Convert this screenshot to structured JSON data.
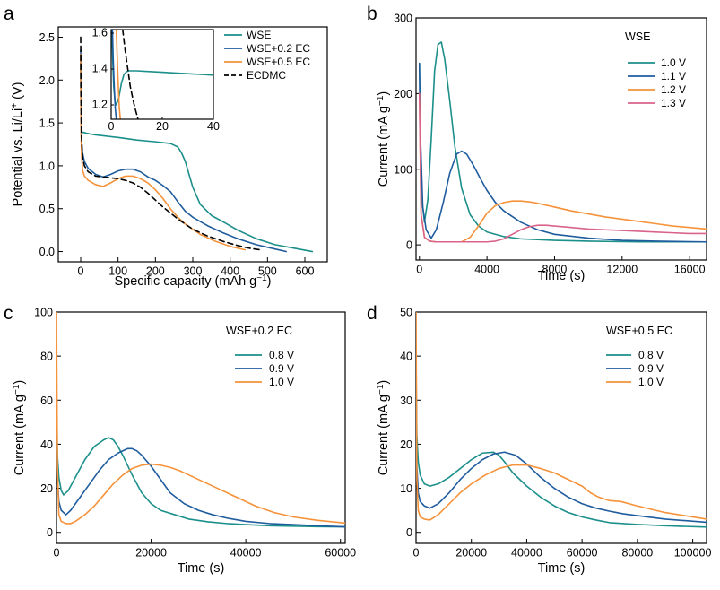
{
  "figure": {
    "colors": {
      "teal": "#1b8f8a",
      "blue": "#1f5c9e",
      "orange": "#f5923a",
      "pink": "#d9638a",
      "black": "#000000"
    }
  },
  "chart_data": [
    {
      "panel": "a",
      "type": "line",
      "xlabel": "Specific capacity (mAh g⁻¹)",
      "ylabel": "Potential vs. Li/Li⁺ (V)",
      "xlim": [
        -60,
        660
      ],
      "ylim": [
        -0.12,
        2.62
      ],
      "xticks": [
        0,
        100,
        200,
        300,
        400,
        500,
        600
      ],
      "yticks": [
        0.0,
        0.5,
        1.0,
        1.5,
        2.0,
        2.5
      ],
      "ytick_labels": [
        "0.0",
        "0.5",
        "1.0",
        "1.5",
        "2.0",
        "2.5"
      ],
      "legend": [
        "WSE",
        "WSE+0.2 EC",
        "WSE+0.5 EC",
        "ECDMC"
      ],
      "series": [
        {
          "name": "WSE",
          "color": "teal",
          "style": "solid",
          "x": [
            0,
            0.5,
            1,
            2,
            3,
            5,
            8,
            15,
            40,
            100,
            150,
            200,
            240,
            260,
            270,
            280,
            290,
            300,
            320,
            350,
            380,
            420,
            470,
            520,
            570,
            620
          ],
          "y": [
            2.3,
            1.9,
            1.6,
            1.45,
            1.38,
            1.39,
            1.39,
            1.38,
            1.36,
            1.33,
            1.3,
            1.28,
            1.26,
            1.22,
            1.15,
            1.05,
            0.9,
            0.75,
            0.55,
            0.42,
            0.35,
            0.25,
            0.15,
            0.08,
            0.04,
            0.0
          ]
        },
        {
          "name": "WSE+0.2 EC",
          "color": "blue",
          "style": "solid",
          "x": [
            0,
            0.5,
            1,
            2,
            5,
            10,
            20,
            40,
            60,
            80,
            100,
            120,
            140,
            160,
            180,
            200,
            220,
            240,
            260,
            280,
            300,
            340,
            380,
            420,
            470,
            520,
            550
          ],
          "y": [
            2.35,
            1.85,
            1.55,
            1.3,
            1.15,
            1.05,
            0.97,
            0.9,
            0.87,
            0.9,
            0.94,
            0.96,
            0.96,
            0.93,
            0.87,
            0.83,
            0.77,
            0.7,
            0.58,
            0.47,
            0.4,
            0.3,
            0.22,
            0.15,
            0.08,
            0.03,
            0.0
          ]
        },
        {
          "name": "WSE+0.5 EC",
          "color": "orange",
          "style": "solid",
          "x": [
            0,
            0.5,
            1,
            2,
            5,
            10,
            20,
            40,
            60,
            80,
            100,
            120,
            140,
            160,
            180,
            200,
            220,
            240,
            260,
            280,
            320,
            360,
            400,
            440
          ],
          "y": [
            2.3,
            1.8,
            1.45,
            1.15,
            0.95,
            0.88,
            0.83,
            0.78,
            0.76,
            0.8,
            0.85,
            0.88,
            0.88,
            0.85,
            0.8,
            0.72,
            0.62,
            0.5,
            0.4,
            0.32,
            0.2,
            0.12,
            0.06,
            0.02
          ]
        },
        {
          "name": "ECDMC",
          "color": "black",
          "style": "dash",
          "x": [
            0,
            0.5,
            1,
            2,
            5,
            10,
            20,
            40,
            60,
            80,
            100,
            120,
            140,
            160,
            180,
            200,
            220,
            240,
            260,
            280,
            300,
            340,
            380,
            420,
            450,
            480
          ],
          "y": [
            2.5,
            2.1,
            1.7,
            1.35,
            1.1,
            1.0,
            0.93,
            0.88,
            0.87,
            0.86,
            0.85,
            0.83,
            0.8,
            0.75,
            0.68,
            0.6,
            0.52,
            0.45,
            0.38,
            0.32,
            0.26,
            0.18,
            0.12,
            0.07,
            0.04,
            0.02
          ]
        }
      ],
      "inset": {
        "xlim": [
          0,
          40
        ],
        "ylim": [
          1.12,
          1.62
        ],
        "xticks": [
          0,
          20,
          40
        ],
        "yticks": [
          1.2,
          1.4,
          1.6
        ],
        "ytick_labels": [
          "1.2",
          "1.4",
          "1.6"
        ],
        "series": [
          {
            "name": "WSE",
            "color": "teal",
            "style": "solid",
            "x": [
              0.3,
              0.6,
              1.0,
              1.5,
              2.0,
              3.0,
              4.0,
              5.0,
              6.0,
              7.0,
              10,
              15,
              20,
              25,
              30,
              35,
              40
            ],
            "y": [
              1.62,
              1.45,
              1.3,
              1.22,
              1.2,
              1.24,
              1.32,
              1.37,
              1.385,
              1.39,
              1.39,
              1.386,
              1.382,
              1.378,
              1.374,
              1.37,
              1.366
            ]
          },
          {
            "name": "WSE+0.2 EC",
            "color": "blue",
            "style": "solid",
            "x": [
              0.5,
              0.8,
              1.2,
              1.6,
              2.0
            ],
            "y": [
              1.62,
              1.45,
              1.3,
              1.18,
              1.12
            ]
          },
          {
            "name": "WSE+0.5 EC",
            "color": "orange",
            "style": "solid",
            "x": [
              2.0,
              2.4,
              2.8,
              3.2,
              3.6
            ],
            "y": [
              1.62,
              1.45,
              1.3,
              1.18,
              1.12
            ]
          },
          {
            "name": "ECDMC",
            "color": "black",
            "style": "dash",
            "x": [
              4.5,
              5.5,
              6.5,
              7.5,
              9.0,
              10.5
            ],
            "y": [
              1.62,
              1.5,
              1.4,
              1.3,
              1.2,
              1.12
            ]
          }
        ]
      }
    },
    {
      "panel": "b",
      "type": "line",
      "title": "WSE",
      "xlabel": "Time (s)",
      "ylabel": "Current (mA g⁻¹)",
      "xlim": [
        -200,
        17000
      ],
      "ylim": [
        -20,
        300
      ],
      "xticks": [
        0,
        4000,
        8000,
        12000,
        16000
      ],
      "yticks": [
        0,
        100,
        200,
        300
      ],
      "legend": [
        "1.0 V",
        "1.1 V",
        "1.2 V",
        "1.3 V"
      ],
      "series": [
        {
          "name": "1.0 V",
          "color": "teal",
          "x": [
            0,
            50,
            150,
            300,
            500,
            700,
            900,
            1100,
            1300,
            1500,
            1800,
            2100,
            2500,
            3000,
            3500,
            4000,
            5000,
            6000,
            8000,
            10000,
            13000,
            17000
          ],
          "y": [
            240,
            150,
            60,
            30,
            60,
            140,
            230,
            265,
            268,
            245,
            190,
            130,
            75,
            40,
            25,
            17,
            11,
            8,
            6,
            5,
            4,
            4
          ]
        },
        {
          "name": "1.1 V",
          "color": "blue",
          "x": [
            0,
            50,
            200,
            400,
            700,
            1000,
            1400,
            1800,
            2200,
            2500,
            2800,
            3200,
            3600,
            4000,
            4500,
            5000,
            6000,
            7000,
            8000,
            10000,
            12000,
            14000,
            17000
          ],
          "y": [
            240,
            150,
            50,
            20,
            9,
            20,
            55,
            95,
            120,
            124,
            120,
            105,
            88,
            72,
            56,
            45,
            30,
            20,
            14,
            9,
            6,
            5,
            4
          ]
        },
        {
          "name": "1.2 V",
          "color": "orange",
          "x": [
            0,
            100,
            300,
            600,
            1000,
            1500,
            2000,
            2500,
            3000,
            3500,
            4000,
            4500,
            5000,
            5500,
            6000,
            6500,
            7000,
            8000,
            9000,
            10000,
            11000,
            12000,
            13000,
            14000,
            15000,
            16000,
            17000
          ],
          "y": [
            200,
            40,
            10,
            5,
            4,
            4,
            4,
            4,
            10,
            25,
            42,
            52,
            56,
            58,
            58,
            57,
            55,
            50,
            45,
            41,
            37,
            34,
            31,
            28,
            25,
            23,
            21
          ]
        },
        {
          "name": "1.3 V",
          "color": "pink",
          "x": [
            0,
            100,
            300,
            600,
            1000,
            2000,
            3000,
            4000,
            4500,
            5000,
            5500,
            6000,
            6500,
            7000,
            7500,
            8000,
            9000,
            10000,
            11000,
            12000,
            13000,
            14000,
            15000,
            16000,
            17000
          ],
          "y": [
            200,
            40,
            10,
            5,
            4,
            4,
            4,
            4,
            5,
            8,
            14,
            20,
            24,
            26,
            26,
            25,
            23,
            21,
            20,
            19,
            18,
            17,
            16,
            15,
            15
          ]
        }
      ]
    },
    {
      "panel": "c",
      "type": "line",
      "title": "WSE+0.2 EC",
      "xlabel": "Time (s)",
      "ylabel": "Current (mA g⁻¹)",
      "xlim": [
        0,
        61000
      ],
      "ylim": [
        -5,
        100
      ],
      "xticks": [
        0,
        20000,
        40000,
        60000
      ],
      "yticks": [
        0,
        20,
        40,
        60,
        80,
        100
      ],
      "legend": [
        "0.8 V",
        "0.9 V",
        "1.0 V"
      ],
      "series": [
        {
          "name": "0.8 V",
          "color": "teal",
          "x": [
            0,
            200,
            500,
            1000,
            1500,
            2500,
            4000,
            6000,
            8000,
            10000,
            11000,
            12000,
            13000,
            14000,
            16000,
            18000,
            20000,
            22000,
            25000,
            28000,
            32000,
            36000,
            40000,
            45000,
            50000,
            55000,
            61000
          ],
          "y": [
            60,
            35,
            25,
            19,
            17,
            19,
            25,
            33,
            39,
            42,
            43,
            42,
            39,
            35,
            26,
            18,
            13,
            10,
            8,
            6,
            4.8,
            4,
            3.5,
            3,
            2.8,
            2.6,
            2.5
          ]
        },
        {
          "name": "0.9 V",
          "color": "blue",
          "x": [
            0,
            200,
            500,
            1000,
            2000,
            3000,
            5000,
            7000,
            9000,
            11000,
            13000,
            15000,
            16000,
            17000,
            18000,
            20000,
            22000,
            24000,
            27000,
            30000,
            33000,
            36000,
            40000,
            45000,
            50000,
            55000,
            61000
          ],
          "y": [
            55,
            25,
            14,
            10,
            8,
            10,
            16,
            22,
            28,
            33,
            36,
            38,
            38,
            37,
            35,
            30,
            24,
            18,
            13,
            10,
            8,
            6.5,
            5,
            4,
            3.5,
            3,
            2.5
          ]
        },
        {
          "name": "1.0 V",
          "color": "orange",
          "x": [
            0,
            200,
            500,
            1000,
            2000,
            3000,
            4000,
            6000,
            8000,
            10000,
            12000,
            14000,
            16000,
            18000,
            20000,
            22000,
            24000,
            26000,
            28000,
            31000,
            34000,
            38000,
            42000,
            46000,
            50000,
            55000,
            61000
          ],
          "y": [
            100,
            30,
            8,
            5,
            4,
            4,
            5,
            8,
            12,
            17,
            22,
            26,
            29,
            30.5,
            31,
            30.5,
            29.5,
            28,
            26,
            23,
            20,
            16,
            12,
            9,
            7,
            5.5,
            4.2
          ]
        }
      ]
    },
    {
      "panel": "d",
      "type": "line",
      "title": "WSE+0.5 EC",
      "xlabel": "Time (s)",
      "ylabel": "Current (mA g⁻¹)",
      "xlim": [
        0,
        105000
      ],
      "ylim": [
        -2.5,
        50
      ],
      "xticks": [
        0,
        20000,
        40000,
        60000,
        80000,
        100000
      ],
      "yticks": [
        0,
        10,
        20,
        30,
        40,
        50
      ],
      "legend": [
        "0.8 V",
        "0.9 V",
        "1.0 V"
      ],
      "series": [
        {
          "name": "0.8 V",
          "color": "teal",
          "x": [
            0,
            300,
            800,
            1500,
            3000,
            5000,
            8000,
            12000,
            16000,
            20000,
            24000,
            28000,
            30000,
            32000,
            35000,
            40000,
            45000,
            50000,
            55000,
            60000,
            65000,
            70000,
            80000,
            90000,
            105000
          ],
          "y": [
            35,
            22,
            16,
            13,
            11,
            10.5,
            11,
            12.5,
            14.5,
            16.5,
            18,
            18.2,
            17.5,
            16,
            13.5,
            10.5,
            8,
            6,
            4.5,
            3.5,
            2.8,
            2.2,
            1.8,
            1.5,
            1.2
          ]
        },
        {
          "name": "0.9 V",
          "color": "blue",
          "x": [
            0,
            300,
            800,
            1500,
            3000,
            5000,
            8000,
            12000,
            16000,
            20000,
            24000,
            28000,
            32000,
            36000,
            40000,
            45000,
            50000,
            55000,
            60000,
            65000,
            70000,
            75000,
            80000,
            90000,
            105000
          ],
          "y": [
            40,
            15,
            9,
            7,
            6,
            5.5,
            6.5,
            9,
            12,
            14.5,
            16.5,
            17.8,
            18.2,
            17.5,
            15.5,
            12.5,
            10,
            8,
            6.5,
            5.5,
            4.8,
            4.2,
            3.8,
            3,
            2.3
          ]
        },
        {
          "name": "1.0 V",
          "color": "orange",
          "x": [
            0,
            300,
            800,
            1500,
            3000,
            5000,
            8000,
            12000,
            16000,
            20000,
            25000,
            30000,
            35000,
            40000,
            45000,
            50000,
            55000,
            60000,
            63000,
            66000,
            70000,
            74000,
            80000,
            90000,
            105000
          ],
          "y": [
            50,
            12,
            5,
            3.5,
            3,
            2.8,
            4,
            6.5,
            9,
            11,
            13,
            14.5,
            15.3,
            15.3,
            14.5,
            13.5,
            12,
            10.5,
            9,
            8,
            7.2,
            7,
            6,
            4.5,
            3
          ]
        }
      ]
    }
  ]
}
